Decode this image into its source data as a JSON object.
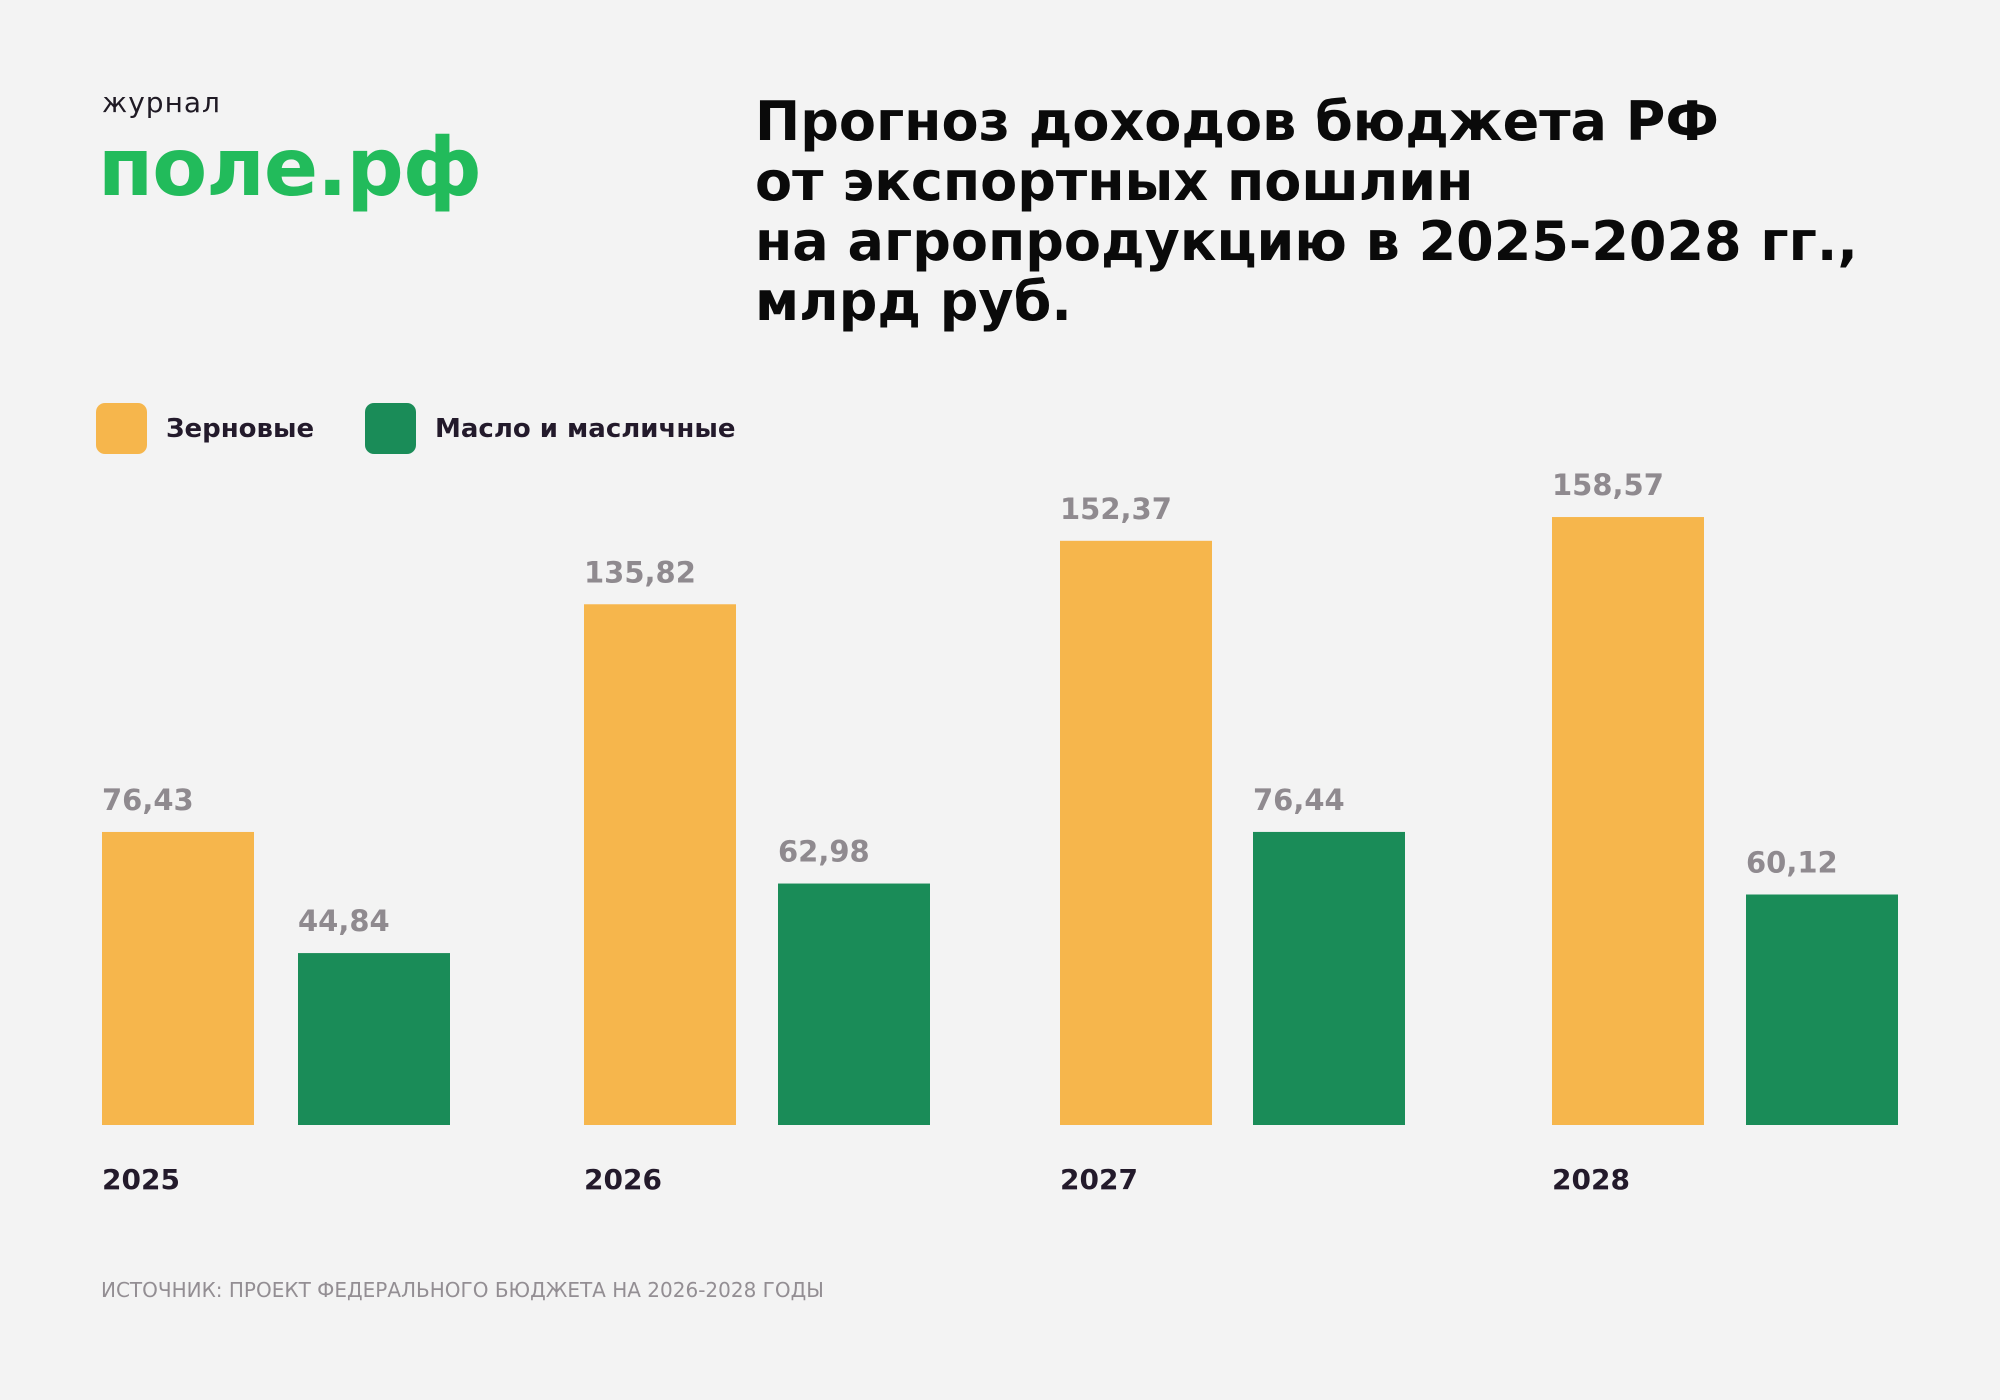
{
  "logo": {
    "small": "журнал",
    "big": "поле.рф"
  },
  "title_lines": [
    "Прогноз доходов бюджета РФ",
    "от экспортных пошлин",
    "на агропродукцию в 2025-2028 гг.,",
    "млрд руб."
  ],
  "source": "ИСТОЧНИК: ПРОЕКТ ФЕДЕРАЛЬНОГО БЮДЖЕТА НА 2026-2028 ГОДЫ",
  "colors": {
    "grain": "#f6b64c",
    "oil": "#1a8c58",
    "brand": "#22bb5b",
    "background": "#f3f3f3"
  },
  "chart_data": {
    "type": "bar",
    "title": "Прогноз доходов бюджета РФ от экспортных пошлин на агропродукцию в 2025-2028 гг., млрд руб.",
    "categories": [
      "2025",
      "2026",
      "2027",
      "2028"
    ],
    "series": [
      {
        "name": "Зерновые",
        "color": "#f6b64c",
        "values": [
          76.43,
          135.82,
          152.37,
          158.57
        ],
        "labels": [
          "76,43",
          "135,82",
          "152,37",
          "158,57"
        ]
      },
      {
        "name": "Масло и масличные",
        "color": "#1a8c58",
        "values": [
          44.84,
          62.98,
          76.44,
          60.12
        ],
        "labels": [
          "44,84",
          "62,98",
          "76,44",
          "60,12"
        ]
      }
    ],
    "ylim": [
      0,
      160
    ],
    "grid": false,
    "legend": "top-left"
  }
}
